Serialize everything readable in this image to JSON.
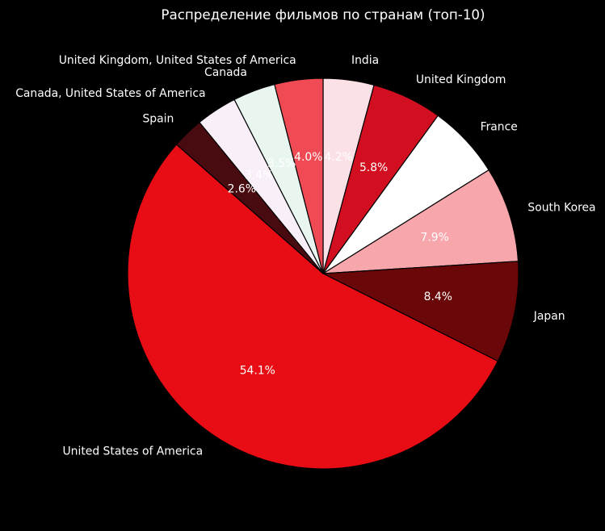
{
  "figure": {
    "background_color": "#000000",
    "text_color": "#ffffff"
  },
  "chart_data": {
    "type": "pie",
    "title": "Распределение фильмов по странам (топ-10)",
    "start_angle_deg": 90,
    "clockwise": true,
    "autopct_format": "one_decimal_percent",
    "legend": "none",
    "note": "France percent label is white text on a white wedge and therefore invisible in the rendered image",
    "slices": [
      {
        "label": "India",
        "slug": "india",
        "value": 4.2,
        "pct_label": "4.2%",
        "color": "#FBE1E5"
      },
      {
        "label": "United Kingdom",
        "slug": "united-kingdom",
        "value": 5.8,
        "pct_label": "5.8%",
        "color": "#D10F20"
      },
      {
        "label": "France",
        "slug": "france",
        "value": 6.1,
        "pct_label": "6.1%",
        "color": "#FFFFFF"
      },
      {
        "label": "South Korea",
        "slug": "south-korea",
        "value": 7.9,
        "pct_label": "7.9%",
        "color": "#F7A6AC"
      },
      {
        "label": "Japan",
        "slug": "japan",
        "value": 8.4,
        "pct_label": "8.4%",
        "color": "#6A0708"
      },
      {
        "label": "United States of America",
        "slug": "united-states-of-america",
        "value": 54.1,
        "pct_label": "54.1%",
        "color": "#E80C15"
      },
      {
        "label": "Spain",
        "slug": "spain",
        "value": 2.6,
        "pct_label": "2.6%",
        "color": "#470B10"
      },
      {
        "label": "Canada, United States of America",
        "slug": "canada-united-states-of-america",
        "value": 3.4,
        "pct_label": "3.4%",
        "color": "#F9EFF8"
      },
      {
        "label": "Canada",
        "slug": "canada",
        "value": 3.5,
        "pct_label": "3.5%",
        "color": "#E9F6F0"
      },
      {
        "label": "United Kingdom, United States of America",
        "slug": "united-kingdom-united-states-of-america",
        "value": 4.0,
        "pct_label": "4.0%",
        "color": "#F04B55"
      }
    ]
  }
}
